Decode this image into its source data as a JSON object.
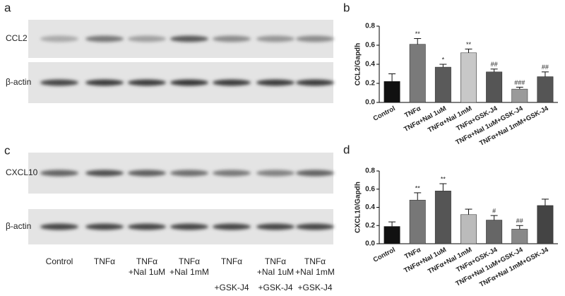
{
  "panels": {
    "a": {
      "label": "a",
      "rows": [
        "CCL2",
        "β-actin"
      ]
    },
    "c": {
      "label": "c",
      "rows": [
        "CXCL10",
        "β-actin"
      ],
      "lanes": [
        {
          "top": "Control"
        },
        {
          "top": "TNFα"
        },
        {
          "top": "TNFα",
          "middle": "+NaI 1uM"
        },
        {
          "top": "TNFα",
          "middle": "+NaI 1mM"
        },
        {
          "top": "TNFα",
          "bottom": "+GSK-J4"
        },
        {
          "top": "TNFα",
          "middle": "+NaI 1uM",
          "bottom": "+GSK-J4"
        },
        {
          "top": "TNFα",
          "middle": "+NaI 1mM",
          "bottom": "+GSK-J4"
        }
      ]
    }
  },
  "chart_data": [
    {
      "type": "bar",
      "panel_label": "b",
      "y_label": "CCL2/Gapdh",
      "categories": [
        "Control",
        "TNFα",
        "TNFα+NaI 1uM",
        "TNFα+NaI 1mM",
        "TNFα+GSK-J4",
        "TNFα+NaI 1uM+GSK-J4",
        "TNFα+NaI 1mM+GSK-J4"
      ],
      "values": [
        0.22,
        0.61,
        0.37,
        0.52,
        0.32,
        0.14,
        0.27
      ],
      "errors": [
        0.08,
        0.06,
        0.03,
        0.04,
        0.03,
        0.02,
        0.05
      ],
      "annotations": [
        null,
        "**",
        "*",
        "**",
        "##",
        "###",
        "##"
      ],
      "colors": [
        "#111111",
        "#7a7a7a",
        "#5a5a5a",
        "#c8c8c8",
        "#555555",
        "#9a9a9a",
        "#555555"
      ],
      "ylim": [
        0,
        0.8
      ],
      "yticks": [
        {
          "value": 0,
          "label": "0.0"
        },
        0.2,
        0.4,
        0.6,
        0.8
      ]
    },
    {
      "type": "bar",
      "panel_label": "d",
      "y_label": "CXCL10/Gapdh",
      "categories": [
        "Control",
        "TNFα",
        "TNFα+NaI 1uM",
        "TNFα+NaI 1mM",
        "TNFα+GSK-J4",
        "TNFα+NaI 1uM+GSK-J4",
        "TNFα+NaI 1mM+GSK-J4"
      ],
      "values": [
        0.19,
        0.48,
        0.58,
        0.32,
        0.26,
        0.16,
        0.42
      ],
      "errors": [
        0.05,
        0.08,
        0.08,
        0.06,
        0.05,
        0.04,
        0.07
      ],
      "annotations": [
        null,
        "**",
        "**",
        null,
        "#",
        "##",
        null
      ],
      "colors": [
        "#111111",
        "#777777",
        "#555555",
        "#bbbbbb",
        "#666666",
        "#888888",
        "#444444"
      ],
      "ylim": [
        0,
        0.8
      ],
      "yticks": [
        {
          "value": 0,
          "label": "0.0"
        },
        0.2,
        0.4,
        0.6,
        0.8
      ]
    }
  ]
}
